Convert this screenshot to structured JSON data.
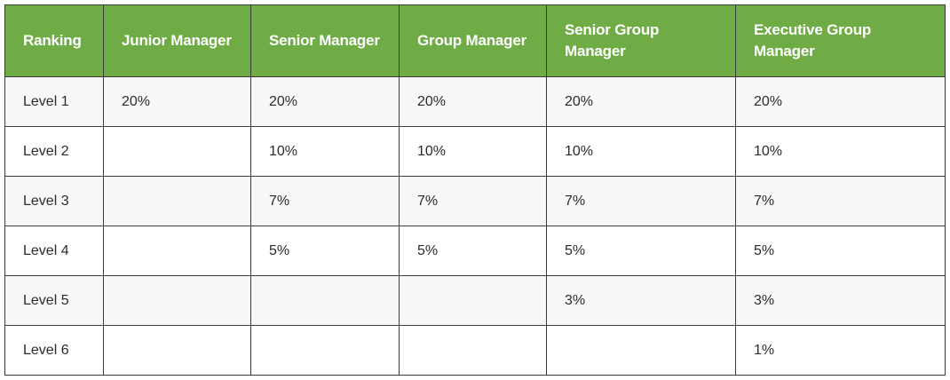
{
  "table": {
    "headers": [
      "Ranking",
      "Junior Manager",
      "Senior Manager",
      "Group Manager",
      "Senior Group Manager",
      "Executive Group Manager"
    ],
    "rows": [
      [
        "Level 1",
        "20%",
        "20%",
        "20%",
        "20%",
        "20%"
      ],
      [
        "Level 2",
        "",
        "10%",
        "10%",
        "10%",
        "10%"
      ],
      [
        "Level 3",
        "",
        "7%",
        "7%",
        "7%",
        "7%"
      ],
      [
        "Level 4",
        "",
        "5%",
        "5%",
        "5%",
        "5%"
      ],
      [
        "Level 5",
        "",
        "",
        "",
        "3%",
        "3%"
      ],
      [
        "Level 6",
        "",
        "",
        "",
        "",
        "1%"
      ]
    ]
  },
  "colors": {
    "header_bg": "#6fac46",
    "header_text": "#ffffff",
    "row_alt_bg": "#f7f8fa",
    "border": "#3a3a3a"
  }
}
